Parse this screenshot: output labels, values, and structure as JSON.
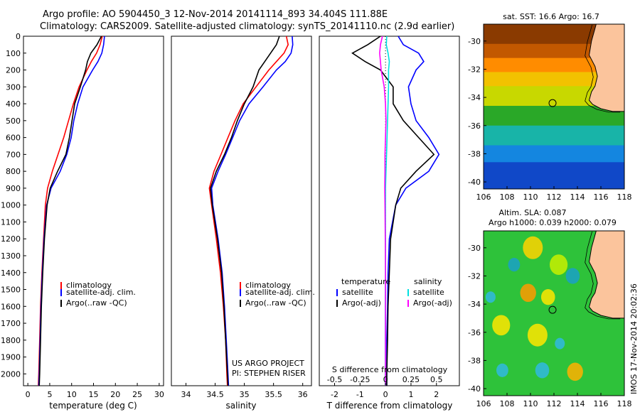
{
  "header": {
    "title_line1": "Argo profile: AO 5904450_3 12-Nov-2014 20141114_893 34.404S 111.88E",
    "title_line2": "Climatology: CARS2009. Satellite-adjusted climatology: synTS_20141110.nc (2.9d earlier)"
  },
  "colors": {
    "climatology": "#ff0000",
    "satellite": "#0000ff",
    "argo": "#000000",
    "sat_salinity": "#00e0e0",
    "argo_adj_salinity": "#ff00ff"
  },
  "side_text": "IMOS 17-Nov-2014 20:02:36",
  "chart_data": [
    {
      "type": "line",
      "id": "temperature",
      "xlabel": "temperature (deg C)",
      "xlim": [
        -1,
        31
      ],
      "xticks": [
        0,
        5,
        10,
        15,
        20,
        25,
        30
      ],
      "ylim": [
        2070,
        0
      ],
      "yticks": [
        0,
        100,
        200,
        300,
        400,
        500,
        600,
        700,
        800,
        900,
        1000,
        1100,
        1200,
        1300,
        1400,
        1500,
        1600,
        1700,
        1800,
        1900,
        2000
      ],
      "legend": [
        "climatology",
        "satellite-adj. clim.",
        "Argo(..raw -QC)"
      ],
      "depth": [
        0,
        50,
        100,
        150,
        200,
        300,
        400,
        500,
        600,
        700,
        800,
        900,
        1000,
        1200,
        1400,
        1600,
        1800,
        2000,
        2070
      ],
      "series": [
        {
          "name": "climatology",
          "values": [
            17,
            16.5,
            15.7,
            14.5,
            13.5,
            11.7,
            10.4,
            9.3,
            8.2,
            6.9,
            5.6,
            4.5,
            4.0,
            3.6,
            3.2,
            2.9,
            2.7,
            2.5,
            2.4
          ]
        },
        {
          "name": "satellite-adj. clim.",
          "values": [
            17.5,
            17.3,
            16.9,
            16,
            14.8,
            12.6,
            11.4,
            10.5,
            9.9,
            8.9,
            7.4,
            5.3,
            4.3,
            3.7,
            3.3,
            3.0,
            2.8,
            2.6,
            2.5
          ]
        },
        {
          "name": "Argo(..raw -QC)",
          "values": [
            16.8,
            15.8,
            14.4,
            13.6,
            13.2,
            12.0,
            10.7,
            10.1,
            9.5,
            8.7,
            6.8,
            5.1,
            4.4,
            3.8,
            3.4,
            3.1,
            2.9,
            2.7,
            2.6
          ]
        }
      ]
    },
    {
      "type": "line",
      "id": "salinity",
      "xlabel": "salinity",
      "xlim": [
        33.75,
        36.15
      ],
      "xticks": [
        34,
        34.5,
        35,
        35.5,
        36
      ],
      "ylim": [
        2070,
        0
      ],
      "legend": [
        "climatology",
        "satellite-adj. clim.",
        "Argo(..raw -QC)"
      ],
      "note_lines": [
        "US ARGO PROJECT",
        "PI: STEPHEN RISER"
      ],
      "depth": [
        0,
        50,
        100,
        150,
        200,
        300,
        400,
        500,
        600,
        700,
        800,
        900,
        1000,
        1200,
        1400,
        1600,
        1800,
        2000,
        2070
      ],
      "series": [
        {
          "name": "climatology",
          "values": [
            35.72,
            35.75,
            35.68,
            35.55,
            35.42,
            35.2,
            34.98,
            34.84,
            34.72,
            34.6,
            34.48,
            34.4,
            34.44,
            34.52,
            34.59,
            34.64,
            34.68,
            34.7,
            34.71
          ]
        },
        {
          "name": "satellite-adj. clim.",
          "values": [
            35.82,
            35.83,
            35.8,
            35.7,
            35.55,
            35.32,
            35.08,
            34.92,
            34.8,
            34.68,
            34.55,
            34.44,
            34.46,
            34.55,
            34.62,
            34.66,
            34.69,
            34.72,
            34.73
          ]
        },
        {
          "name": "Argo(..raw -QC)",
          "values": [
            35.6,
            35.55,
            35.45,
            35.35,
            35.25,
            35.15,
            35.0,
            34.88,
            34.78,
            34.66,
            34.52,
            34.42,
            34.45,
            34.54,
            34.61,
            34.65,
            34.68,
            34.71,
            34.72
          ]
        }
      ]
    },
    {
      "type": "line",
      "id": "difference",
      "xlabel": "T difference from climatology",
      "xlabel_top": "S difference from climatology",
      "xlim": [
        -2.6,
        2.9
      ],
      "xticks": [
        -2,
        -1,
        0,
        1,
        2
      ],
      "top_ticks": [
        "-0.5",
        "-0.25",
        "0",
        "0.25",
        "0.5"
      ],
      "ylim": [
        2070,
        0
      ],
      "legend_headers": [
        "temperature",
        "salinity"
      ],
      "legend_left": [
        "satellite",
        "Argo(-adj)"
      ],
      "legend_right": [
        "satellite",
        "Argo(-adj)"
      ],
      "depth": [
        0,
        50,
        100,
        150,
        200,
        300,
        400,
        500,
        600,
        700,
        800,
        900,
        1000,
        1200,
        1400,
        1600,
        1800,
        2000,
        2070
      ],
      "series": [
        {
          "name": "T satellite",
          "values": [
            0.5,
            0.7,
            1.3,
            1.5,
            1.2,
            0.9,
            1.0,
            1.2,
            1.7,
            2.1,
            1.7,
            0.8,
            0.4,
            0.15,
            0.1,
            0.08,
            0.05,
            0.05,
            0.05
          ]
        },
        {
          "name": "T Argo(-adj)",
          "values": [
            -0.2,
            -0.7,
            -1.3,
            -0.8,
            -0.2,
            0.3,
            0.3,
            0.7,
            1.3,
            1.9,
            1.2,
            0.6,
            0.4,
            0.2,
            0.15,
            0.1,
            0.08,
            0.05,
            0.05
          ]
        },
        {
          "name": "S satellite",
          "values": [
            0.05,
            0.03,
            0.1,
            0.15,
            0.12,
            0.12,
            0.1,
            0.08,
            0.06,
            0.04,
            0.02,
            0.0,
            0.0,
            0.0,
            0.0,
            -0.01,
            -0.01,
            -0.01,
            -0.01
          ]
        },
        {
          "name": "S Argo(-adj)",
          "values": [
            -0.12,
            -0.2,
            -0.23,
            -0.2,
            -0.17,
            -0.05,
            0.0,
            0.02,
            0.0,
            -0.02,
            -0.02,
            -0.03,
            -0.02,
            -0.01,
            0.0,
            0.0,
            0.0,
            0.0,
            0.0
          ]
        }
      ]
    },
    {
      "type": "heatmap",
      "id": "sst_map",
      "title": "sat. SST: 16.6 Argo: 16.7",
      "xlim": [
        106,
        118
      ],
      "xticks": [
        106,
        108,
        110,
        112,
        114,
        116,
        118
      ],
      "ylim": [
        -40.5,
        -28.8
      ],
      "yticks": [
        -30,
        -32,
        -34,
        -36,
        -38,
        -40
      ],
      "marker": [
        111.88,
        -34.404
      ]
    },
    {
      "type": "heatmap",
      "id": "sla_map",
      "title_lines": [
        "Altim. SLA: 0.087",
        "Argo h1000: 0.039 h2000: 0.079"
      ],
      "xlim": [
        106,
        118
      ],
      "xticks": [
        106,
        108,
        110,
        112,
        114,
        116,
        118
      ],
      "ylim": [
        -40.5,
        -28.8
      ],
      "yticks": [
        -30,
        -32,
        -34,
        -36,
        -38,
        -40
      ],
      "marker": [
        111.88,
        -34.404
      ]
    }
  ]
}
